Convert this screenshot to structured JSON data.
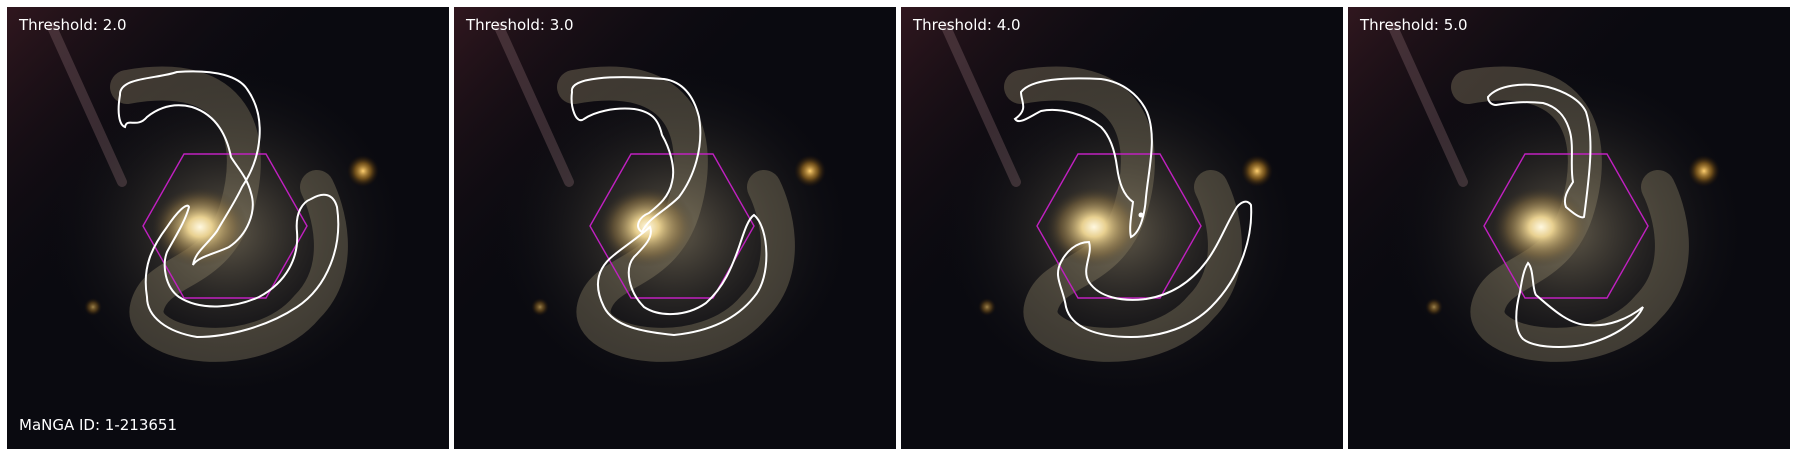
{
  "colors": {
    "contour": "#ffffff",
    "hexagon": "#c020c0",
    "sky": "#0a0a10"
  },
  "panels": [
    {
      "threshold_label": "Threshold: 2.0"
    },
    {
      "threshold_label": "Threshold: 3.0"
    },
    {
      "threshold_label": "Threshold: 4.0"
    },
    {
      "threshold_label": "Threshold: 5.0"
    }
  ],
  "manga_id_label": "MaNGA ID: 1-213651"
}
